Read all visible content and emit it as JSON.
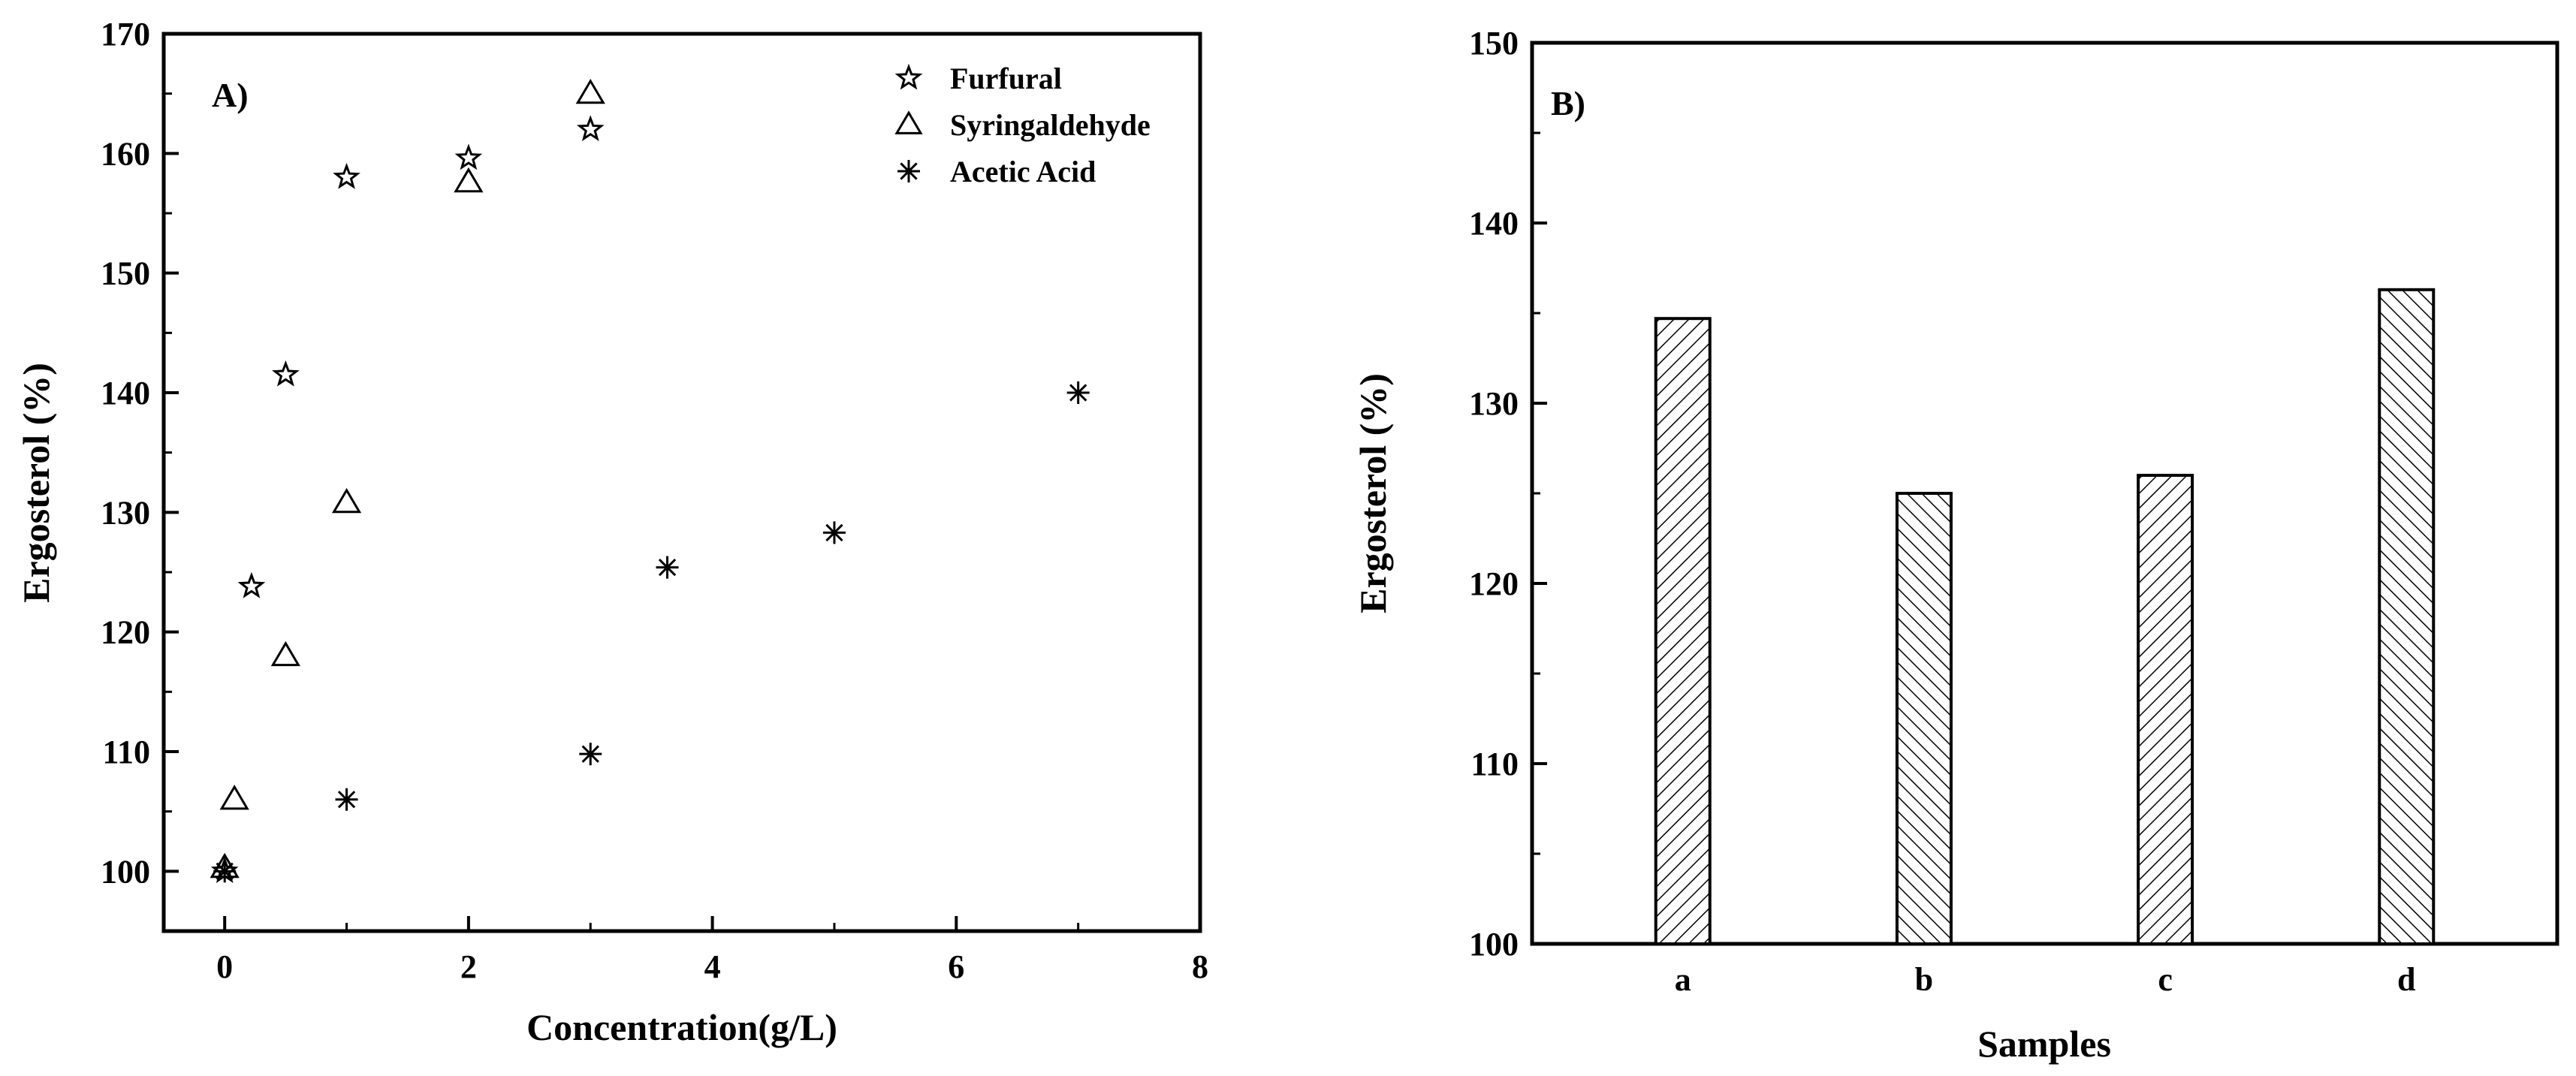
{
  "chart_data": [
    {
      "type": "scatter",
      "panel_label": "A)",
      "xlabel": "Concentration(g/L)",
      "ylabel": "Ergosterol (%)",
      "xlim": [
        -0.5,
        8
      ],
      "ylim": [
        95,
        170
      ],
      "x_ticks": [
        0,
        2,
        4,
        6,
        8
      ],
      "y_ticks": [
        100,
        110,
        120,
        130,
        140,
        150,
        160,
        170
      ],
      "legend_position": "top-right",
      "series": [
        {
          "name": "Furfural",
          "marker": "star",
          "points": [
            [
              0,
              100
            ],
            [
              0.22,
              123.8
            ],
            [
              0.5,
              141.5
            ],
            [
              1,
              158
            ],
            [
              2,
              159.6
            ],
            [
              3,
              162
            ]
          ]
        },
        {
          "name": "Syringaldehyde",
          "marker": "triangle",
          "points": [
            [
              0,
              100.3
            ],
            [
              0.08,
              106
            ],
            [
              0.5,
              118
            ],
            [
              1,
              130.8
            ],
            [
              2,
              157.6
            ],
            [
              3,
              165
            ]
          ]
        },
        {
          "name": "Acetic Acid",
          "marker": "asterisk",
          "points": [
            [
              0,
              100
            ],
            [
              1,
              106
            ],
            [
              3,
              109.8
            ],
            [
              3.63,
              125.4
            ],
            [
              5,
              128.3
            ],
            [
              7,
              140
            ]
          ]
        }
      ]
    },
    {
      "type": "bar",
      "panel_label": "B)",
      "xlabel": "Samples",
      "ylabel": "Ergosterol (%)",
      "ylim": [
        100,
        150
      ],
      "y_ticks": [
        100,
        110,
        120,
        130,
        140,
        150
      ],
      "categories": [
        "a",
        "b",
        "c",
        "d"
      ],
      "values": [
        134.7,
        125,
        126,
        136.3
      ],
      "hatch": [
        "forward",
        "back",
        "forward",
        "back"
      ]
    }
  ]
}
